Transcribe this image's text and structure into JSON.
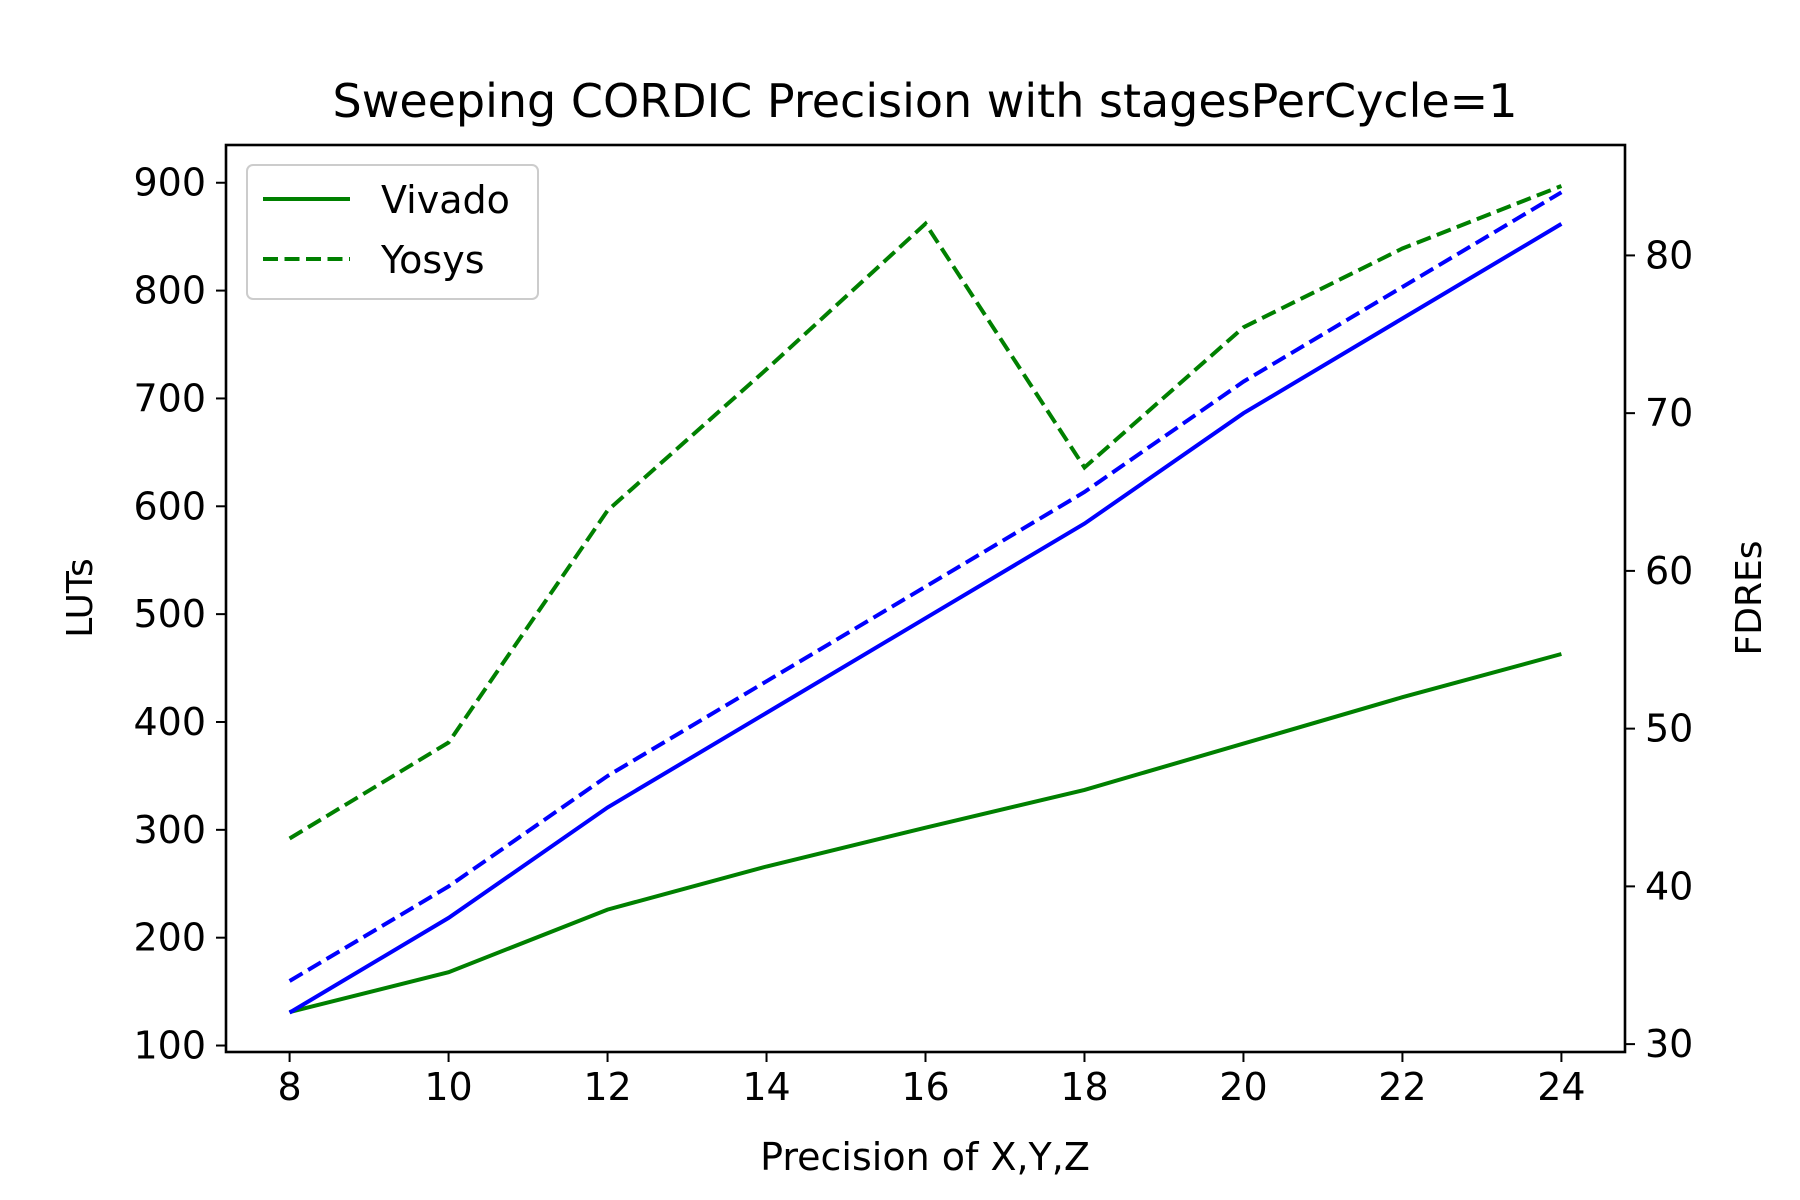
{
  "chart_data": {
    "type": "line",
    "title": "Sweeping CORDIC Precision with stagesPerCycle=1",
    "xlabel": "Precision of X,Y,Z",
    "ylabel_left": "LUTs",
    "ylabel_right": "FDREs",
    "x": [
      8,
      10,
      12,
      14,
      16,
      18,
      20,
      22,
      24
    ],
    "xlim": [
      7.2,
      24.8
    ],
    "ylim_left": [
      94,
      935
    ],
    "ylim_right": [
      29.5,
      87.0
    ],
    "xticks": [
      8,
      10,
      12,
      14,
      16,
      18,
      20,
      22,
      24
    ],
    "yticks_left": [
      100,
      200,
      300,
      400,
      500,
      600,
      700,
      800,
      900
    ],
    "yticks_right": [
      30,
      40,
      50,
      60,
      70,
      80
    ],
    "grid": false,
    "legend_position": "upper-left",
    "legend": [
      {
        "label": "Vivado",
        "style": "solid"
      },
      {
        "label": "Yosys",
        "style": "dashed"
      }
    ],
    "series": [
      {
        "name": "Vivado",
        "axis": "left",
        "metric": "LUTs",
        "style": "solid",
        "color": "#008000",
        "values": [
          131,
          168,
          226,
          266,
          302,
          337,
          380,
          423,
          463
        ]
      },
      {
        "name": "Yosys",
        "axis": "left",
        "metric": "LUTs",
        "style": "dashed",
        "color": "#008000",
        "values": [
          292,
          381,
          596,
          727,
          862,
          636,
          766,
          839,
          897
        ]
      },
      {
        "name": "Vivado",
        "axis": "right",
        "metric": "FDREs",
        "style": "solid",
        "color": "#0000ff",
        "values": [
          32,
          38,
          45,
          51,
          57,
          63,
          70,
          76,
          82
        ]
      },
      {
        "name": "Yosys",
        "axis": "right",
        "metric": "FDREs",
        "style": "dashed",
        "color": "#0000ff",
        "values": [
          34,
          40,
          47,
          53,
          59,
          65,
          72,
          78,
          84
        ]
      }
    ],
    "colors": {
      "left_axis_label": "#008000",
      "right_axis_label": "#0000ff"
    }
  }
}
